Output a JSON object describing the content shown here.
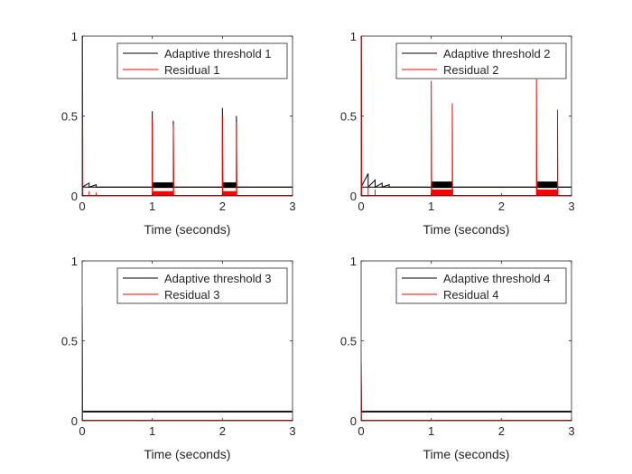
{
  "chart_data": [
    {
      "type": "line",
      "xlabel": "Time (seconds)",
      "xlim": [
        0,
        3
      ],
      "ylim": [
        0,
        1
      ],
      "xticks": [
        "0",
        "1",
        "2",
        "3"
      ],
      "yticks": [
        "0",
        "0.5",
        "1"
      ],
      "legend_position": "top-right",
      "series": [
        {
          "name": "Adaptive threshold 1",
          "color": "#000000",
          "baseline": 0.055,
          "points": [
            [
              0.0,
              0.055
            ],
            [
              0.1,
              0.08
            ],
            [
              0.1,
              0.055
            ],
            [
              0.2,
              0.07
            ],
            [
              0.2,
              0.055
            ],
            [
              1.0,
              0.055
            ],
            [
              1.0,
              0.53
            ],
            [
              1.005,
              0.06
            ],
            [
              1.3,
              0.06
            ],
            [
              1.3,
              0.47
            ],
            [
              1.305,
              0.055
            ],
            [
              2.0,
              0.055
            ],
            [
              2.0,
              0.55
            ],
            [
              2.005,
              0.06
            ],
            [
              2.2,
              0.06
            ],
            [
              2.2,
              0.5
            ],
            [
              2.205,
              0.055
            ],
            [
              3.0,
              0.055
            ]
          ],
          "bands": [
            [
              1.0,
              1.3,
              0.05,
              0.085
            ],
            [
              2.0,
              2.2,
              0.05,
              0.085
            ]
          ]
        },
        {
          "name": "Residual 1",
          "color": "#ff0000",
          "baseline": 0.003,
          "points": [
            [
              0.0,
              1.0
            ],
            [
              0.005,
              1.0
            ],
            [
              0.01,
              0.0
            ],
            [
              0.1,
              0.0
            ],
            [
              0.1,
              0.03
            ],
            [
              0.1,
              0.0
            ],
            [
              0.2,
              0.0
            ],
            [
              0.2,
              0.02
            ],
            [
              0.2,
              0.0
            ],
            [
              1.0,
              0.0
            ],
            [
              1.0,
              0.48
            ],
            [
              1.005,
              0.02
            ],
            [
              1.3,
              0.02
            ],
            [
              1.3,
              0.44
            ],
            [
              1.305,
              0.0
            ],
            [
              2.0,
              0.0
            ],
            [
              2.0,
              0.5
            ],
            [
              2.005,
              0.02
            ],
            [
              2.2,
              0.02
            ],
            [
              2.2,
              0.46
            ],
            [
              2.205,
              0.0
            ],
            [
              3.0,
              0.0
            ]
          ],
          "bands": [
            [
              1.0,
              1.3,
              0.0,
              0.03
            ],
            [
              2.0,
              2.2,
              0.0,
              0.03
            ]
          ]
        }
      ]
    },
    {
      "type": "line",
      "xlabel": "Time (seconds)",
      "xlim": [
        0,
        3
      ],
      "ylim": [
        0,
        1
      ],
      "xticks": [
        "0",
        "1",
        "2",
        "3"
      ],
      "yticks": [
        "0",
        "0.5",
        "1"
      ],
      "legend_position": "top-right",
      "series": [
        {
          "name": "Adaptive threshold 2",
          "color": "#000000",
          "baseline": 0.055,
          "points": [
            [
              0.0,
              0.055
            ],
            [
              0.1,
              0.14
            ],
            [
              0.1,
              0.055
            ],
            [
              0.2,
              0.1
            ],
            [
              0.2,
              0.055
            ],
            [
              0.3,
              0.08
            ],
            [
              0.3,
              0.055
            ],
            [
              0.4,
              0.07
            ],
            [
              0.4,
              0.055
            ],
            [
              1.0,
              0.055
            ],
            [
              1.0,
              0.06
            ],
            [
              1.3,
              0.06
            ],
            [
              1.3,
              0.055
            ],
            [
              2.5,
              0.055
            ],
            [
              2.5,
              0.06
            ],
            [
              2.8,
              0.06
            ],
            [
              2.8,
              0.055
            ],
            [
              3.0,
              0.055
            ]
          ],
          "bands": [
            [
              1.0,
              1.3,
              0.05,
              0.09
            ],
            [
              2.5,
              2.8,
              0.05,
              0.09
            ]
          ]
        },
        {
          "name": "Residual 2",
          "color": "#ff0000",
          "baseline": 0.003,
          "points": [
            [
              0.0,
              1.0
            ],
            [
              0.005,
              1.0
            ],
            [
              0.01,
              0.0
            ],
            [
              0.1,
              0.0
            ],
            [
              0.1,
              0.06
            ],
            [
              0.1,
              0.0
            ],
            [
              0.2,
              0.0
            ],
            [
              0.2,
              0.04
            ],
            [
              0.2,
              0.0
            ],
            [
              1.0,
              0.0
            ],
            [
              1.0,
              0.72
            ],
            [
              1.005,
              0.02
            ],
            [
              1.3,
              0.02
            ],
            [
              1.3,
              0.58
            ],
            [
              1.305,
              0.0
            ],
            [
              2.5,
              0.0
            ],
            [
              2.5,
              0.73
            ],
            [
              2.505,
              0.02
            ],
            [
              2.8,
              0.02
            ],
            [
              2.8,
              0.54
            ],
            [
              2.805,
              0.0
            ],
            [
              3.0,
              0.0
            ]
          ],
          "bands": [
            [
              1.0,
              1.3,
              0.0,
              0.04
            ],
            [
              2.5,
              2.8,
              0.0,
              0.04
            ]
          ]
        }
      ]
    },
    {
      "type": "line",
      "xlabel": "Time (seconds)",
      "xlim": [
        0,
        3
      ],
      "ylim": [
        0,
        1
      ],
      "xticks": [
        "0",
        "1",
        "2",
        "3"
      ],
      "yticks": [
        "0",
        "0.5",
        "1"
      ],
      "legend_position": "top-right",
      "series": [
        {
          "name": "Adaptive threshold 3",
          "color": "#000000",
          "baseline": 0.055,
          "points": [
            [
              0.0,
              0.72
            ],
            [
              0.005,
              0.06
            ],
            [
              3.0,
              0.06
            ]
          ],
          "bands": []
        },
        {
          "name": "Residual 3",
          "color": "#ff0000",
          "baseline": 0.003,
          "points": [
            [
              0.0,
              0.68
            ],
            [
              0.005,
              0.0
            ],
            [
              3.0,
              0.0
            ]
          ],
          "bands": []
        }
      ]
    },
    {
      "type": "line",
      "xlabel": "Time (seconds)",
      "xlim": [
        0,
        3
      ],
      "ylim": [
        0,
        1
      ],
      "xticks": [
        "0",
        "1",
        "2",
        "3"
      ],
      "yticks": [
        "0",
        "0.5",
        "1"
      ],
      "legend_position": "top-right",
      "series": [
        {
          "name": "Adaptive threshold 4",
          "color": "#000000",
          "baseline": 0.055,
          "points": [
            [
              0.0,
              0.36
            ],
            [
              0.005,
              0.06
            ],
            [
              3.0,
              0.06
            ]
          ],
          "bands": []
        },
        {
          "name": "Residual 4",
          "color": "#ff0000",
          "baseline": 0.003,
          "points": [
            [
              0.0,
              0.31
            ],
            [
              0.005,
              0.0
            ],
            [
              3.0,
              0.0
            ]
          ],
          "bands": []
        }
      ]
    }
  ]
}
